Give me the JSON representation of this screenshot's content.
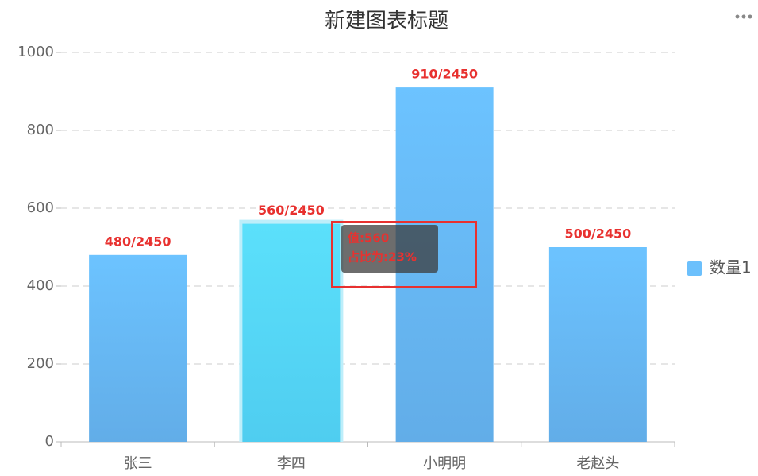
{
  "chart_data": {
    "type": "bar",
    "title": "新建图表标题",
    "categories": [
      "张三",
      "李四",
      "小明明",
      "老赵头"
    ],
    "series": [
      {
        "name": "数量1",
        "color": "#6cc0fc",
        "values": [
          480,
          560,
          910,
          500
        ],
        "value_labels": [
          "480/2450",
          "560/2450",
          "910/2450",
          "500/2450"
        ]
      }
    ],
    "ylim": [
      0,
      1000
    ],
    "yticks": [
      0,
      200,
      400,
      600,
      800,
      1000
    ],
    "grid": true,
    "legend": "right",
    "tooltip": [
      "值:560",
      "占比为:23%"
    ]
  }
}
